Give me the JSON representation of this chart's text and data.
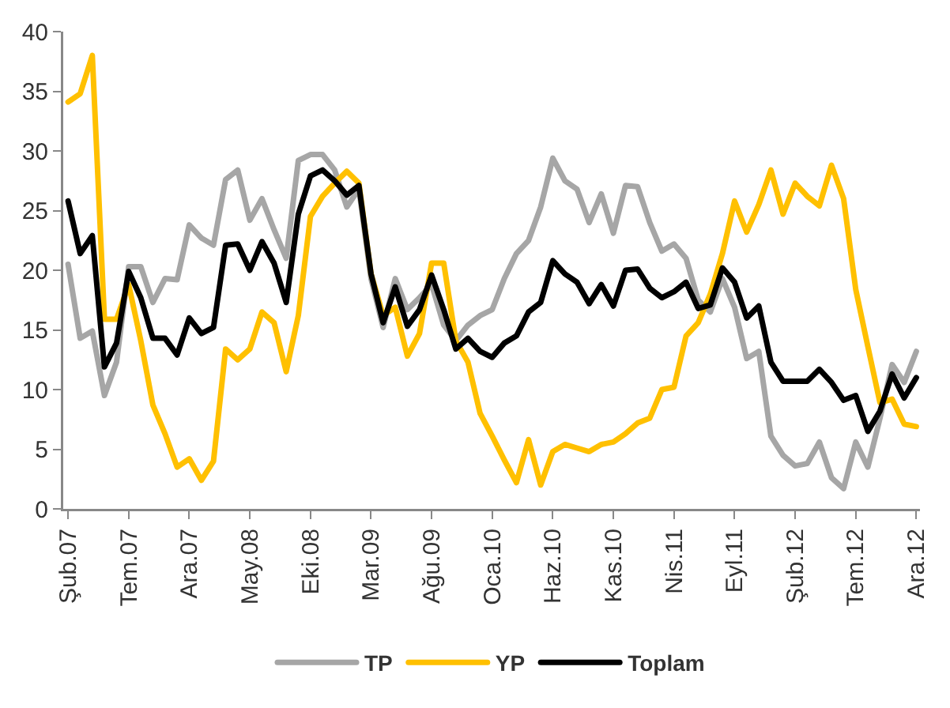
{
  "chart_data": {
    "type": "line",
    "categories": [
      "Şub.07",
      null,
      null,
      null,
      null,
      "Tem.07",
      null,
      null,
      null,
      null,
      "Ara.07",
      null,
      null,
      null,
      null,
      "May.08",
      null,
      null,
      null,
      null,
      "Eki.08",
      null,
      null,
      null,
      null,
      "Mar.09",
      null,
      null,
      null,
      null,
      "Ağu.09",
      null,
      null,
      null,
      null,
      "Oca.10",
      null,
      null,
      null,
      null,
      "Haz.10",
      null,
      null,
      null,
      null,
      "Kas.10",
      null,
      null,
      null,
      null,
      "Nis.11",
      null,
      null,
      null,
      null,
      "Eyl.11",
      null,
      null,
      null,
      null,
      "Şub.12",
      null,
      null,
      null,
      null,
      "Tem.12",
      null,
      null,
      null,
      null,
      "Ara.12"
    ],
    "series": [
      {
        "name": "TP",
        "color": "#a6a6a6",
        "values": [
          20.5,
          14.3,
          14.9,
          9.5,
          12.3,
          20.3,
          20.3,
          17.3,
          19.3,
          19.2,
          23.8,
          22.7,
          22.1,
          27.6,
          28.4,
          24.2,
          26.0,
          23.4,
          21.0,
          29.2,
          29.7,
          29.7,
          28.4,
          25.3,
          26.8,
          19.3,
          15.2,
          19.3,
          16.7,
          17.7,
          18.8,
          15.4,
          14.1,
          15.4,
          16.2,
          16.7,
          19.3,
          21.4,
          22.5,
          25.3,
          29.4,
          27.5,
          26.8,
          24.0,
          26.4,
          23.1,
          27.1,
          27.0,
          24.0,
          21.6,
          22.2,
          21.0,
          17.5,
          16.5,
          19.3,
          16.9,
          12.6,
          13.2,
          6.1,
          4.5,
          3.6,
          3.8,
          5.6,
          2.6,
          1.7,
          5.6,
          3.5,
          7.6,
          12.1,
          10.6,
          13.2
        ]
      },
      {
        "name": "YP",
        "color": "#ffc000",
        "values": [
          34.1,
          34.8,
          38.0,
          15.9,
          15.9,
          18.8,
          14.1,
          8.7,
          6.3,
          3.5,
          4.2,
          2.4,
          4.0,
          13.4,
          12.5,
          13.4,
          16.5,
          15.6,
          11.5,
          16.2,
          24.5,
          26.2,
          27.3,
          28.3,
          27.3,
          19.7,
          16.2,
          16.9,
          12.8,
          14.7,
          20.6,
          20.6,
          14.1,
          12.3,
          8.0,
          6.1,
          4.1,
          2.2,
          5.8,
          2.0,
          4.8,
          5.4,
          5.1,
          4.8,
          5.4,
          5.6,
          6.3,
          7.2,
          7.6,
          10.0,
          10.2,
          14.5,
          15.6,
          18.0,
          21.4,
          25.8,
          23.2,
          25.5,
          28.4,
          24.7,
          27.3,
          26.2,
          25.4,
          28.8,
          26.0,
          18.4,
          13.6,
          8.9,
          9.2,
          7.1,
          6.9
        ]
      },
      {
        "name": "Toplam",
        "color": "#000000",
        "values": [
          25.8,
          21.4,
          22.9,
          11.9,
          13.9,
          19.9,
          17.7,
          14.3,
          14.3,
          12.9,
          16.0,
          14.7,
          15.2,
          22.1,
          22.2,
          20.0,
          22.4,
          20.6,
          17.3,
          24.7,
          27.9,
          28.4,
          27.5,
          26.3,
          27.1,
          19.7,
          15.6,
          18.6,
          15.3,
          16.7,
          19.6,
          16.7,
          13.4,
          14.3,
          13.2,
          12.7,
          13.9,
          14.5,
          16.5,
          17.3,
          20.8,
          19.7,
          19.0,
          17.2,
          18.8,
          17.0,
          20.0,
          20.1,
          18.5,
          17.7,
          18.2,
          19.0,
          16.8,
          17.1,
          20.2,
          19.0,
          16.0,
          17.0,
          12.3,
          10.7,
          10.7,
          10.7,
          11.7,
          10.6,
          9.1,
          9.5,
          6.5,
          8.2,
          11.3,
          9.3,
          11.0
        ]
      }
    ],
    "ylim": [
      0,
      40
    ],
    "yticks": [
      0,
      5,
      10,
      15,
      20,
      25,
      30,
      35,
      40
    ],
    "grid": false,
    "legend": "bottom",
    "marker": "none",
    "line_style": "solid"
  }
}
